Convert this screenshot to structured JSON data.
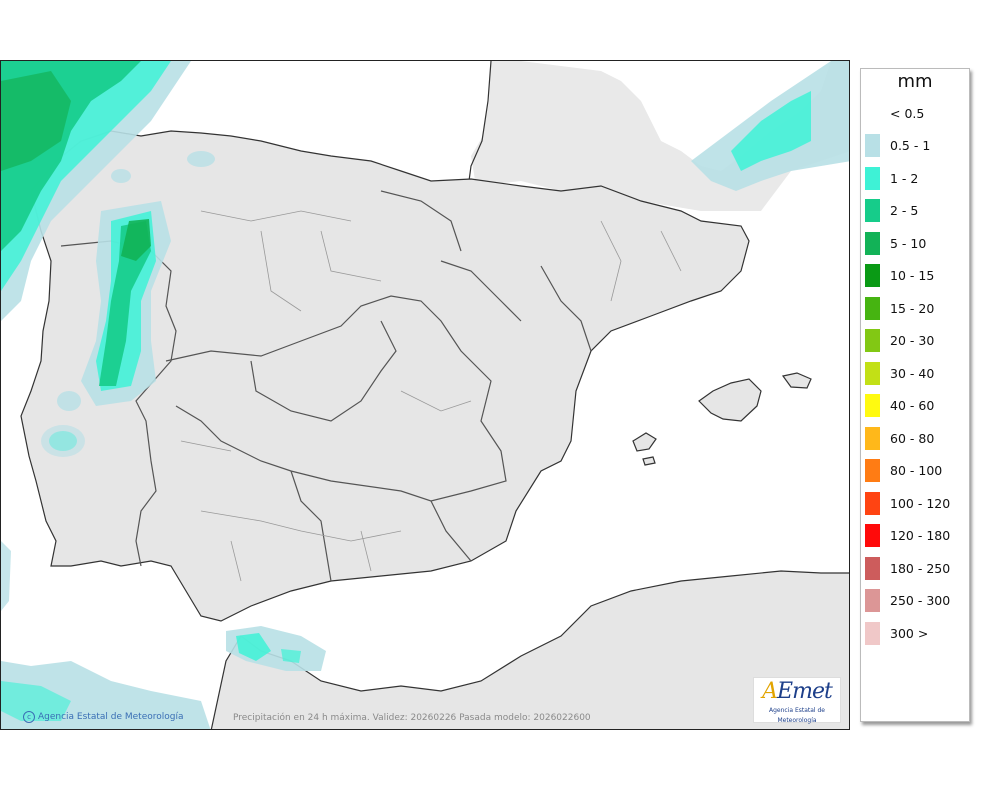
{
  "map": {
    "caption": "Precipitación en 24 h máxima. Validez: 20260226 Pasada modelo: 2026022600",
    "credit": "Agencia Estatal de Meteorología",
    "logo": {
      "word_a": "A",
      "word_rest": "Emet",
      "sub": "Agencia Estatal de Meteorología"
    },
    "colors": {
      "land": "#e6e6e6",
      "sea": "#ffffff",
      "border": "#333333",
      "inner_border": "#8c8c8c"
    }
  },
  "legend": {
    "unit": "mm",
    "items": [
      {
        "label": "< 0.5",
        "color": null
      },
      {
        "label": "0.5 - 1",
        "color": "#b8e0e6"
      },
      {
        "label": "1 - 2",
        "color": "#3ef2d6"
      },
      {
        "label": "2 - 5",
        "color": "#16cc8a"
      },
      {
        "label": "5 - 10",
        "color": "#12b257"
      },
      {
        "label": "10 - 15",
        "color": "#0a9a15"
      },
      {
        "label": "15 - 20",
        "color": "#46b411"
      },
      {
        "label": "20 - 30",
        "color": "#82c814"
      },
      {
        "label": "30 - 40",
        "color": "#c2e016"
      },
      {
        "label": "40 - 60",
        "color": "#fffa10"
      },
      {
        "label": "60 - 80",
        "color": "#ffb81a"
      },
      {
        "label": "80 - 100",
        "color": "#ff7c14"
      },
      {
        "label": "100 - 120",
        "color": "#ff4412"
      },
      {
        "label": "120 - 180",
        "color": "#ff0a0a"
      },
      {
        "label": "180 - 250",
        "color": "#cd5c5c"
      },
      {
        "label": "250 - 300",
        "color": "#dc9696"
      },
      {
        "label": "300 >",
        "color": "#f0c8c8"
      }
    ]
  }
}
